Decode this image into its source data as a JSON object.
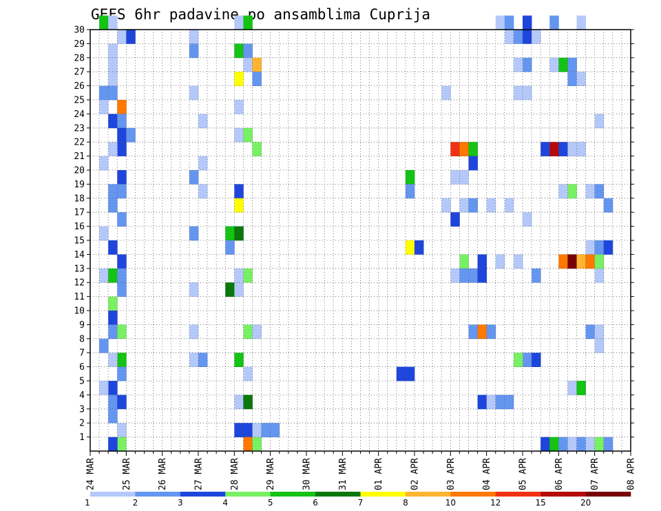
{
  "chart_data": {
    "type": "heatmap",
    "title": "GEFS 6hr padavine po ansamblima Cuprija",
    "xlabel": "",
    "ylabel": "",
    "x_ticks": [
      "24 MAR",
      "25 MAR",
      "26 MAR",
      "27 MAR",
      "28 MAR",
      "29 MAR",
      "30 MAR",
      "31 MAR",
      "01 APR",
      "02 APR",
      "03 APR",
      "04 APR",
      "05 APR",
      "06 APR",
      "07 APR",
      "08 APR"
    ],
    "y_ticks": [
      "1",
      "2",
      "3",
      "4",
      "5",
      "6",
      "7",
      "8",
      "9",
      "10",
      "11",
      "12",
      "13",
      "14",
      "15",
      "16",
      "17",
      "18",
      "19",
      "20",
      "21",
      "22",
      "23",
      "24",
      "25",
      "26",
      "27",
      "28",
      "29",
      "30"
    ],
    "x_range": [
      0,
      60
    ],
    "y_range": [
      0,
      30
    ],
    "grid": true,
    "colorbar": {
      "labels": [
        "1",
        "2",
        "3",
        "4",
        "5",
        "6",
        "7",
        "8",
        "10",
        "12",
        "15",
        "20"
      ],
      "colors": [
        "#b4c8fa",
        "#6496f0",
        "#1e46dc",
        "#78f064",
        "#14c314",
        "#0a780a",
        "#ffff00",
        "#ffb432",
        "#ff7800",
        "#f03214",
        "#b40a0a",
        "#780000"
      ]
    },
    "cells": [
      [
        1,
        30,
        4
      ],
      [
        2,
        30,
        0
      ],
      [
        3,
        29,
        0
      ],
      [
        4,
        29,
        2
      ],
      [
        2,
        28,
        0
      ],
      [
        2,
        27,
        0
      ],
      [
        2,
        26,
        0
      ],
      [
        1,
        25,
        1
      ],
      [
        2,
        25,
        1
      ],
      [
        3,
        24,
        8
      ],
      [
        1,
        24,
        0
      ],
      [
        2,
        23,
        2
      ],
      [
        3,
        23,
        1
      ],
      [
        3,
        22,
        2
      ],
      [
        4,
        22,
        1
      ],
      [
        3,
        21,
        2
      ],
      [
        2,
        21,
        0
      ],
      [
        1,
        20,
        0
      ],
      [
        3,
        19,
        2
      ],
      [
        2,
        18,
        1
      ],
      [
        3,
        18,
        1
      ],
      [
        2,
        17,
        1
      ],
      [
        3,
        16,
        1
      ],
      [
        1,
        15,
        0
      ],
      [
        2,
        14,
        2
      ],
      [
        3,
        13,
        2
      ],
      [
        1,
        12,
        0
      ],
      [
        2,
        12,
        4
      ],
      [
        3,
        12,
        1
      ],
      [
        3,
        11,
        1
      ],
      [
        2,
        10,
        3
      ],
      [
        2,
        9,
        2
      ],
      [
        2,
        8,
        1
      ],
      [
        3,
        8,
        3
      ],
      [
        1,
        7,
        1
      ],
      [
        3,
        6,
        4
      ],
      [
        2,
        6,
        0
      ],
      [
        3,
        5,
        1
      ],
      [
        2,
        4,
        2
      ],
      [
        1,
        4,
        0
      ],
      [
        2,
        3,
        1
      ],
      [
        3,
        3,
        2
      ],
      [
        2,
        2,
        1
      ],
      [
        3,
        1,
        0
      ],
      [
        3,
        0,
        3
      ],
      [
        2,
        0,
        2
      ],
      [
        11,
        29,
        0
      ],
      [
        11,
        28,
        1
      ],
      [
        12,
        23,
        0
      ],
      [
        12,
        20,
        0
      ],
      [
        11,
        19,
        1
      ],
      [
        12,
        18,
        0
      ],
      [
        11,
        25,
        0
      ],
      [
        11,
        15,
        1
      ],
      [
        11,
        11,
        0
      ],
      [
        11,
        8,
        0
      ],
      [
        11,
        6,
        0
      ],
      [
        12,
        6,
        1
      ],
      [
        16,
        3,
        0
      ],
      [
        17,
        3,
        5
      ],
      [
        16,
        30,
        0
      ],
      [
        17,
        30,
        4
      ],
      [
        16,
        28,
        4
      ],
      [
        17,
        28,
        1
      ],
      [
        17,
        27,
        0
      ],
      [
        18,
        27,
        7
      ],
      [
        16,
        26,
        6
      ],
      [
        18,
        26,
        1
      ],
      [
        16,
        24,
        0
      ],
      [
        16,
        22,
        0
      ],
      [
        17,
        22,
        3
      ],
      [
        18,
        21,
        3
      ],
      [
        16,
        18,
        2
      ],
      [
        16,
        17,
        6
      ],
      [
        15,
        15,
        4
      ],
      [
        16,
        15,
        5
      ],
      [
        15,
        14,
        1
      ],
      [
        16,
        12,
        0
      ],
      [
        17,
        12,
        3
      ],
      [
        15,
        11,
        5
      ],
      [
        16,
        11,
        0
      ],
      [
        17,
        8,
        3
      ],
      [
        18,
        8,
        0
      ],
      [
        16,
        6,
        4
      ],
      [
        17,
        5,
        0
      ],
      [
        16,
        1,
        2
      ],
      [
        17,
        1,
        2
      ],
      [
        18,
        1,
        0
      ],
      [
        19,
        1,
        1
      ],
      [
        20,
        1,
        1
      ],
      [
        17,
        0,
        8
      ],
      [
        18,
        0,
        3
      ],
      [
        34,
        5,
        2
      ],
      [
        35,
        5,
        2
      ],
      [
        35,
        19,
        4
      ],
      [
        35,
        18,
        1
      ],
      [
        35,
        14,
        6
      ],
      [
        36,
        14,
        2
      ],
      [
        39,
        17,
        0
      ],
      [
        40,
        19,
        0
      ],
      [
        41,
        19,
        0
      ],
      [
        39,
        25,
        0
      ],
      [
        40,
        16,
        2
      ],
      [
        41,
        17,
        0
      ],
      [
        42,
        17,
        1
      ],
      [
        41,
        13,
        3
      ],
      [
        40,
        12,
        0
      ],
      [
        41,
        12,
        1
      ],
      [
        42,
        12,
        1
      ],
      [
        43,
        12,
        2
      ],
      [
        43,
        13,
        2
      ],
      [
        44,
        17,
        0
      ],
      [
        46,
        17,
        0
      ],
      [
        45,
        13,
        0
      ],
      [
        47,
        13,
        0
      ],
      [
        40,
        21,
        9
      ],
      [
        41,
        21,
        8
      ],
      [
        42,
        21,
        4
      ],
      [
        42,
        20,
        2
      ],
      [
        42,
        8,
        1
      ],
      [
        43,
        8,
        8
      ],
      [
        44,
        8,
        1
      ],
      [
        43,
        3,
        2
      ],
      [
        44,
        3,
        0
      ],
      [
        45,
        3,
        1
      ],
      [
        46,
        3,
        1
      ],
      [
        45,
        30,
        0
      ],
      [
        46,
        30,
        1
      ],
      [
        46,
        29,
        0
      ],
      [
        48,
        30,
        2
      ],
      [
        47,
        29,
        1
      ],
      [
        48,
        29,
        2
      ],
      [
        49,
        29,
        0
      ],
      [
        48,
        27,
        1
      ],
      [
        47,
        27,
        0
      ],
      [
        47,
        25,
        0
      ],
      [
        48,
        25,
        0
      ],
      [
        48,
        16,
        0
      ],
      [
        49,
        12,
        1
      ],
      [
        48,
        6,
        1
      ],
      [
        47,
        6,
        3
      ],
      [
        49,
        6,
        2
      ],
      [
        51,
        30,
        1
      ],
      [
        54,
        30,
        0
      ],
      [
        51,
        27,
        0
      ],
      [
        52,
        27,
        4
      ],
      [
        53,
        27,
        1
      ],
      [
        53,
        26,
        1
      ],
      [
        54,
        26,
        0
      ],
      [
        50,
        21,
        2
      ],
      [
        51,
        21,
        10
      ],
      [
        52,
        21,
        2
      ],
      [
        53,
        21,
        0
      ],
      [
        54,
        21,
        0
      ],
      [
        52,
        18,
        0
      ],
      [
        53,
        18,
        3
      ],
      [
        55,
        18,
        0
      ],
      [
        56,
        18,
        1
      ],
      [
        55,
        14,
        0
      ],
      [
        56,
        14,
        1
      ],
      [
        57,
        14,
        2
      ],
      [
        56,
        12,
        0
      ],
      [
        52,
        13,
        8
      ],
      [
        53,
        13,
        11
      ],
      [
        54,
        13,
        7
      ],
      [
        55,
        13,
        8
      ],
      [
        56,
        13,
        3
      ],
      [
        55,
        8,
        1
      ],
      [
        56,
        8,
        0
      ],
      [
        56,
        7,
        0
      ],
      [
        53,
        4,
        0
      ],
      [
        54,
        4,
        4
      ],
      [
        56,
        23,
        0
      ],
      [
        57,
        17,
        1
      ],
      [
        50,
        0,
        2
      ],
      [
        51,
        0,
        4
      ],
      [
        52,
        0,
        1
      ],
      [
        53,
        0,
        0
      ],
      [
        54,
        0,
        1
      ],
      [
        55,
        0,
        0
      ],
      [
        56,
        0,
        3
      ],
      [
        57,
        0,
        1
      ]
    ]
  }
}
